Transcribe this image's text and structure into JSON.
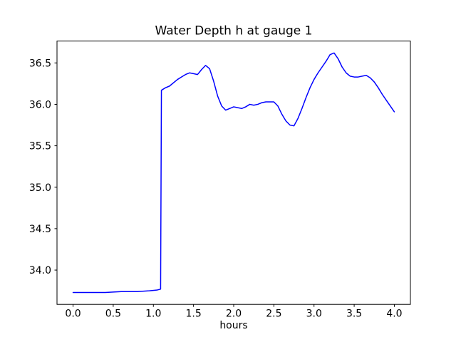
{
  "figure": {
    "background": "#ffffff"
  },
  "chart_data": {
    "type": "line",
    "title": "Water Depth h at gauge 1",
    "xlabel": "hours",
    "ylabel": "",
    "grid": false,
    "legend_position": "none",
    "xlim": [
      -0.2,
      4.2
    ],
    "ylim": [
      33.586,
      36.764
    ],
    "xticks": [
      0.0,
      0.5,
      1.0,
      1.5,
      2.0,
      2.5,
      3.0,
      3.5,
      4.0
    ],
    "xtick_labels": [
      "0.0",
      "0.5",
      "1.0",
      "1.5",
      "2.0",
      "2.5",
      "3.0",
      "3.5",
      "4.0"
    ],
    "yticks": [
      34.0,
      34.5,
      35.0,
      35.5,
      36.0,
      36.5
    ],
    "ytick_labels": [
      "34.0",
      "34.5",
      "35.0",
      "35.5",
      "36.0",
      "36.5"
    ],
    "line_color": "#0000ff",
    "line_width": 1.5,
    "series": [
      {
        "name": "water-depth-h",
        "color": "#0000ff",
        "x": [
          0.0,
          0.2,
          0.4,
          0.6,
          0.8,
          0.95,
          1.05,
          1.09,
          1.1,
          1.15,
          1.2,
          1.3,
          1.4,
          1.45,
          1.5,
          1.55,
          1.6,
          1.65,
          1.7,
          1.75,
          1.8,
          1.85,
          1.9,
          1.95,
          2.0,
          2.05,
          2.1,
          2.15,
          2.2,
          2.25,
          2.3,
          2.35,
          2.4,
          2.45,
          2.5,
          2.55,
          2.6,
          2.65,
          2.7,
          2.75,
          2.8,
          2.85,
          2.9,
          2.95,
          3.0,
          3.05,
          3.1,
          3.15,
          3.2,
          3.25,
          3.3,
          3.35,
          3.4,
          3.45,
          3.5,
          3.55,
          3.6,
          3.65,
          3.7,
          3.75,
          3.8,
          3.85,
          3.9,
          3.95,
          4.0
        ],
        "y": [
          33.73,
          33.73,
          33.73,
          33.74,
          33.74,
          33.75,
          33.76,
          33.77,
          36.17,
          36.2,
          36.22,
          36.3,
          36.36,
          36.38,
          36.37,
          36.36,
          36.42,
          36.47,
          36.43,
          36.28,
          36.1,
          35.98,
          35.93,
          35.95,
          35.97,
          35.96,
          35.95,
          35.97,
          36.0,
          35.99,
          36.0,
          36.02,
          36.03,
          36.03,
          36.03,
          35.98,
          35.88,
          35.8,
          35.75,
          35.74,
          35.83,
          35.95,
          36.08,
          36.2,
          36.3,
          36.38,
          36.45,
          36.52,
          36.6,
          36.62,
          36.55,
          36.45,
          36.38,
          36.34,
          36.33,
          36.33,
          36.34,
          36.35,
          36.32,
          36.27,
          36.2,
          36.12,
          36.05,
          35.98,
          35.91
        ]
      }
    ]
  }
}
